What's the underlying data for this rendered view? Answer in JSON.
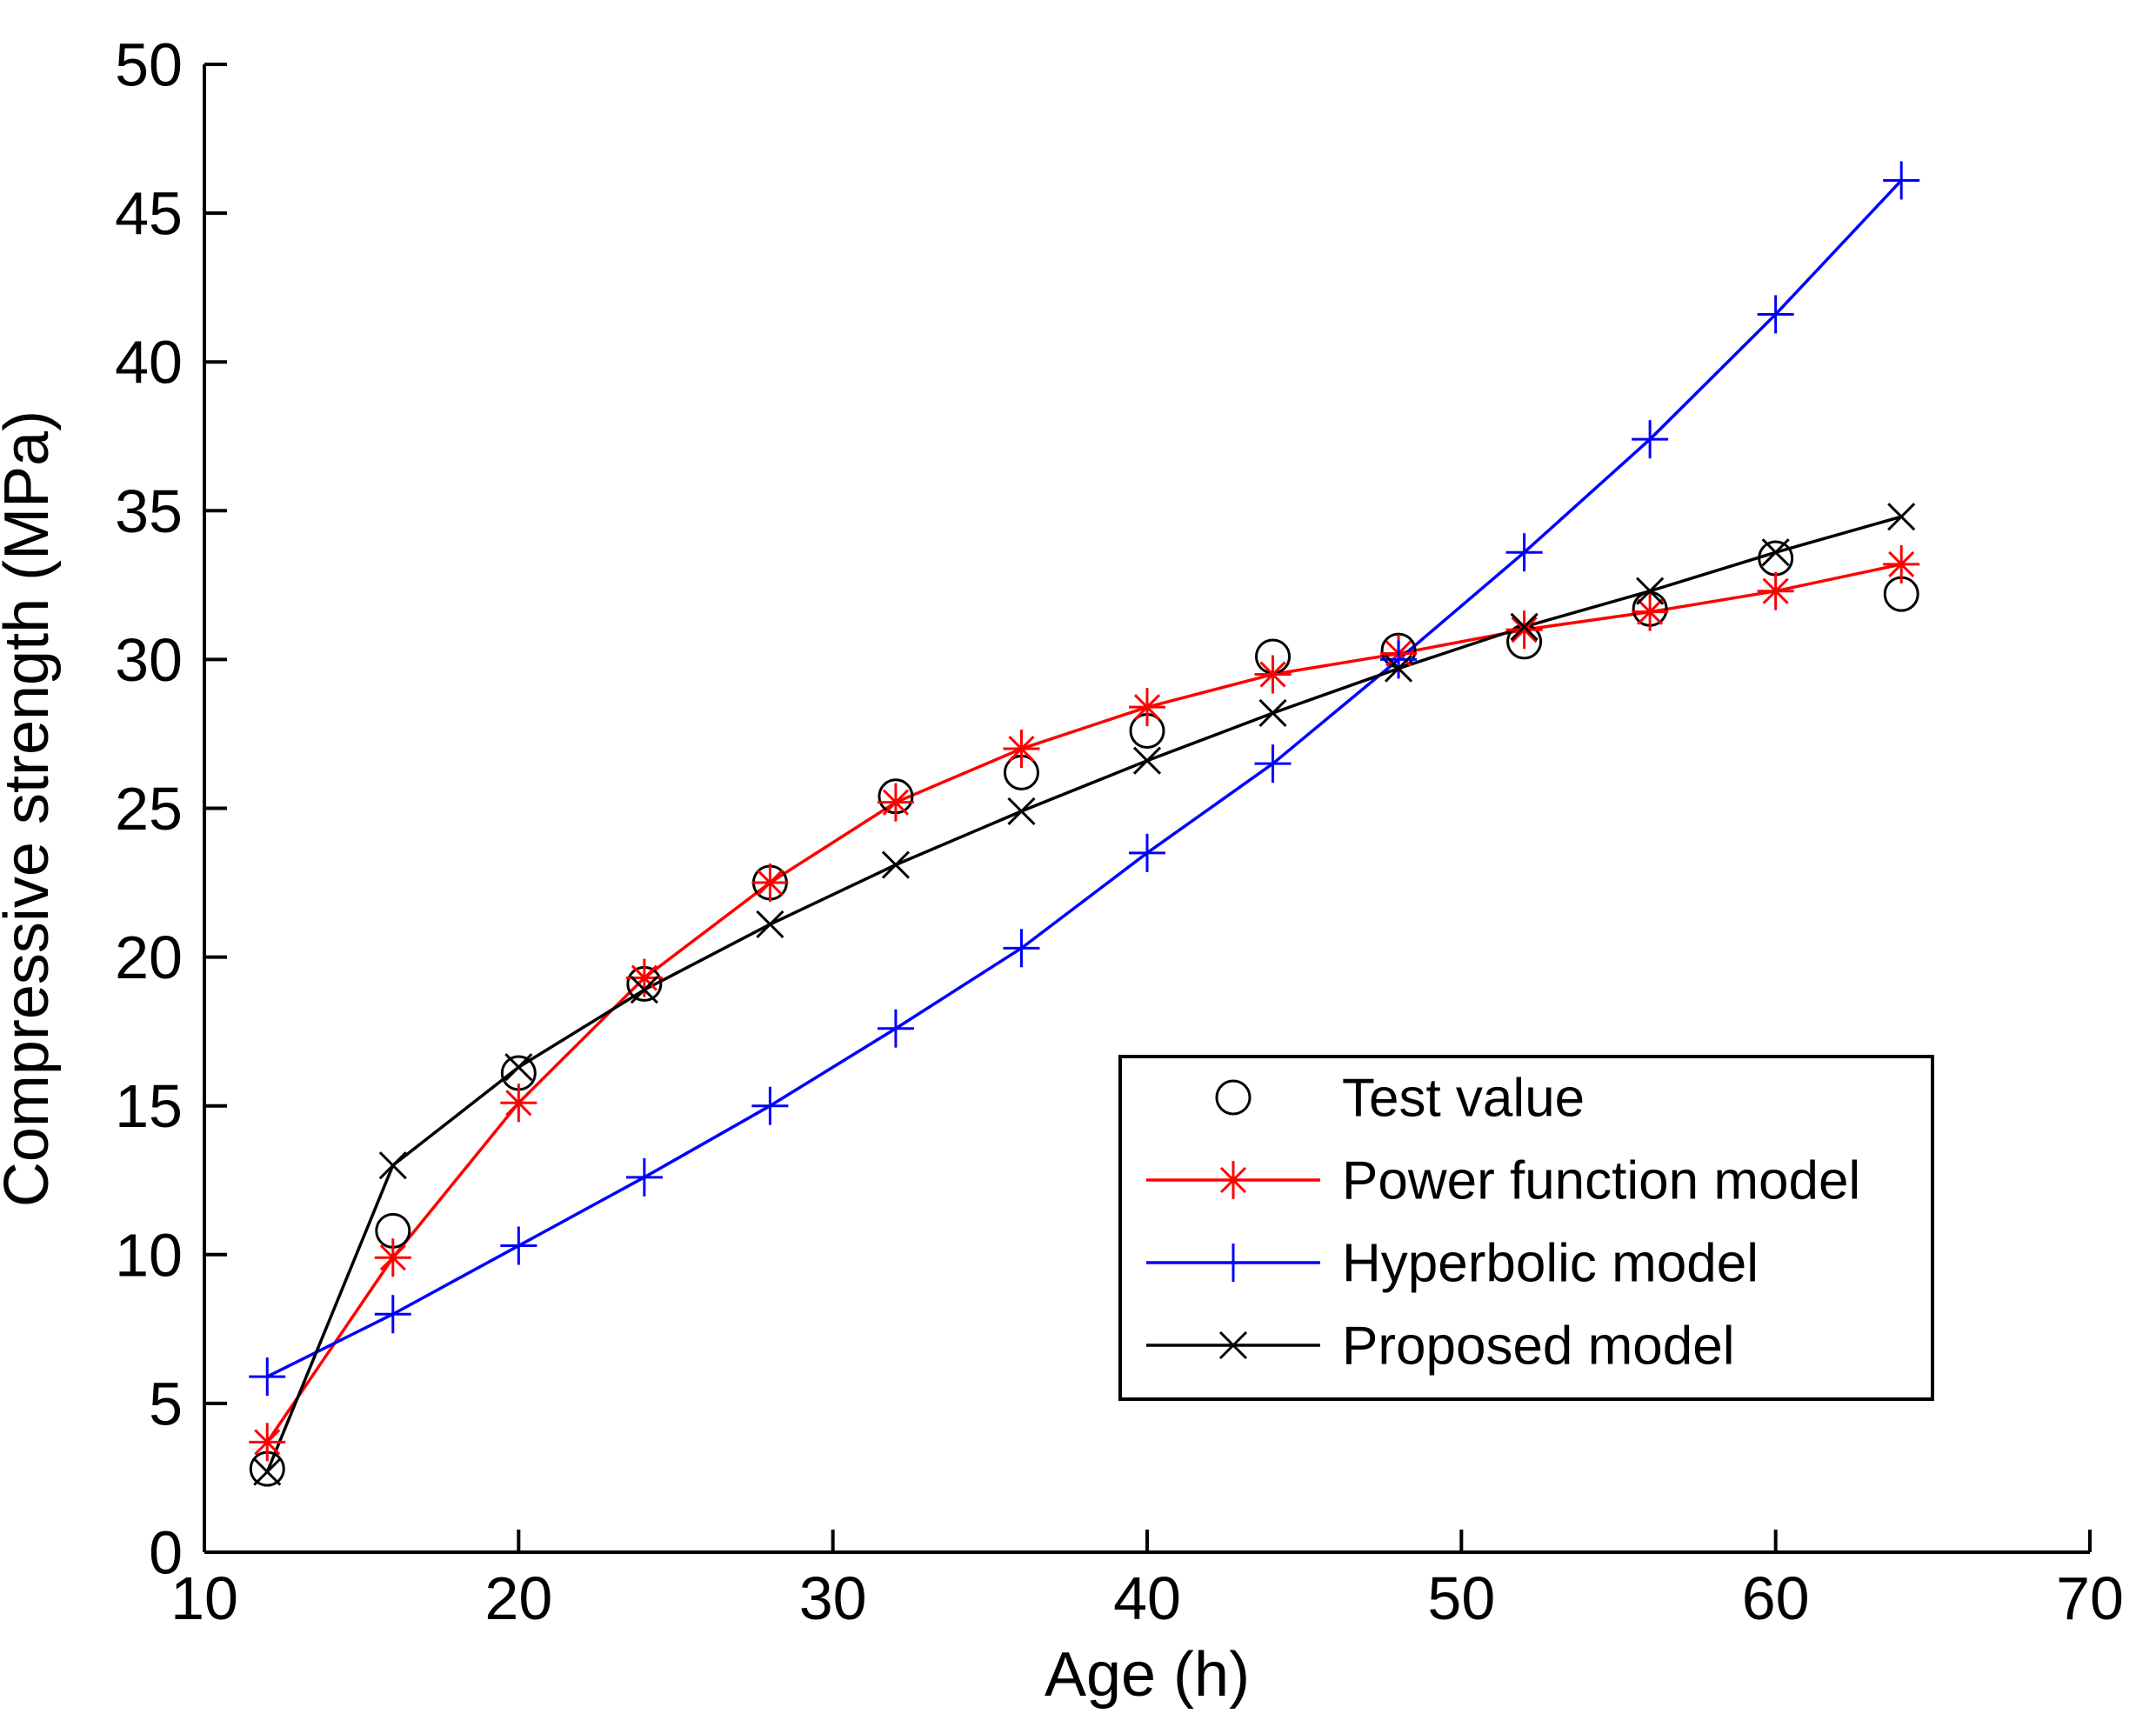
{
  "figure": {
    "background": "#ffffff",
    "axis_color": "#000000"
  },
  "chart_data": {
    "type": "line",
    "title": "",
    "xlabel": "Age (h)",
    "ylabel": "Compressive strength (MPa)",
    "xlim": [
      10,
      70
    ],
    "ylim": [
      0,
      50
    ],
    "x_ticks": [
      10,
      20,
      30,
      40,
      50,
      60,
      70
    ],
    "y_ticks": [
      0,
      5,
      10,
      15,
      20,
      25,
      30,
      35,
      40,
      45,
      50
    ],
    "grid": false,
    "legend_position": "inside-lower-right",
    "x": [
      12,
      16,
      20,
      24,
      28,
      32,
      36,
      40,
      44,
      48,
      52,
      56,
      60,
      64
    ],
    "series": [
      {
        "name": "Test value",
        "marker": "circle",
        "color": "#000000",
        "line": false,
        "values": [
          2.8,
          10.8,
          16.1,
          19.1,
          22.5,
          25.4,
          26.2,
          27.6,
          30.1,
          30.3,
          30.6,
          31.7,
          33.4,
          32.2
        ]
      },
      {
        "name": "Power function model",
        "marker": "asterisk",
        "color": "#ff0000",
        "line": true,
        "values": [
          3.7,
          9.9,
          15.1,
          19.3,
          22.5,
          25.2,
          27.0,
          28.4,
          29.5,
          30.2,
          31.0,
          31.6,
          32.3,
          33.2
        ]
      },
      {
        "name": "Hyperbolic model",
        "marker": "plus",
        "color": "#0000ff",
        "line": true,
        "values": [
          5.9,
          8.0,
          10.3,
          12.6,
          15.0,
          17.6,
          20.3,
          23.5,
          26.5,
          30.0,
          33.6,
          37.4,
          41.6,
          46.1
        ]
      },
      {
        "name": "Proposed model",
        "marker": "x",
        "color": "#000000",
        "line": true,
        "values": [
          2.7,
          13.0,
          16.3,
          18.9,
          21.1,
          23.1,
          24.9,
          26.6,
          28.2,
          29.7,
          31.1,
          32.3,
          33.6,
          34.8
        ]
      }
    ]
  }
}
